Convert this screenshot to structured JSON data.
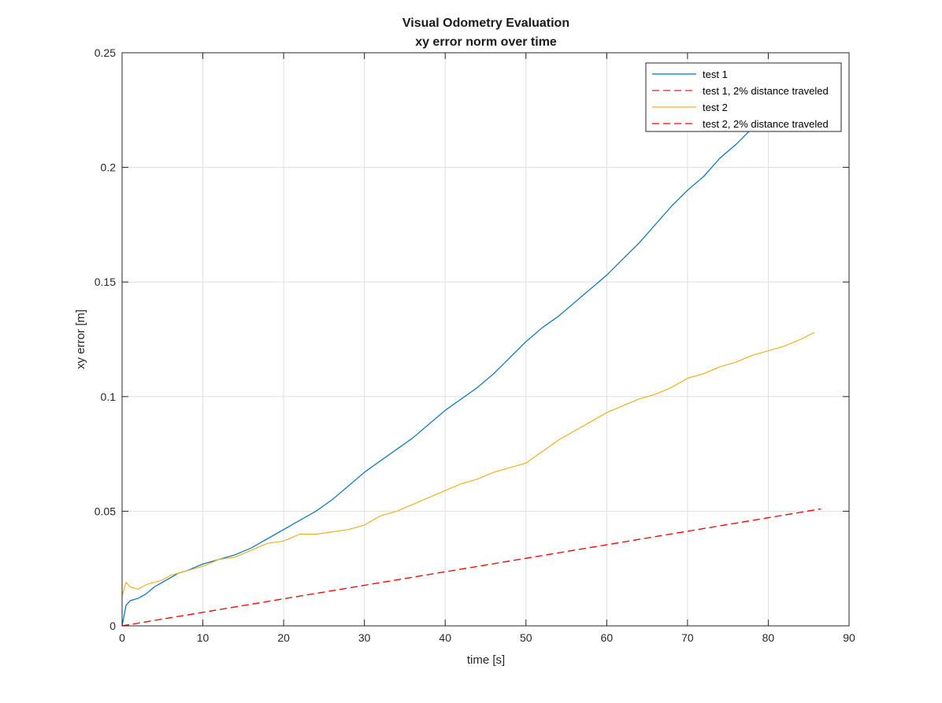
{
  "chart_data": {
    "type": "line",
    "title": "Visual Odometry Evaluation",
    "subtitle": "xy error norm over time",
    "xlabel": "time [s]",
    "ylabel": "xy error [m]",
    "xlim": [
      0,
      90
    ],
    "ylim": [
      0,
      0.25
    ],
    "x_ticks": [
      0,
      10,
      20,
      30,
      40,
      50,
      60,
      70,
      80,
      90
    ],
    "y_ticks": [
      0,
      0.05,
      0.1,
      0.15,
      0.2,
      0.25
    ],
    "x_tick_labels": [
      "0",
      "10",
      "20",
      "30",
      "40",
      "50",
      "60",
      "70",
      "80",
      "90"
    ],
    "y_tick_labels": [
      "0",
      "0.05",
      "0.1",
      "0.15",
      "0.2",
      "0.25"
    ],
    "grid": true,
    "legend_position": "top-right",
    "series": [
      {
        "name": "test 1",
        "color": "#0072BD",
        "style": "solid",
        "x": [
          0,
          0.5,
          1,
          2,
          3,
          4,
          5,
          6,
          7,
          8,
          10,
          12,
          14,
          16,
          18,
          20,
          22,
          24,
          26,
          28,
          30,
          32,
          34,
          36,
          38,
          40,
          42,
          44,
          46,
          48,
          50,
          52,
          54,
          56,
          58,
          60,
          62,
          64,
          66,
          68,
          70,
          72,
          74,
          76,
          78,
          79.3
        ],
        "y": [
          0,
          0.009,
          0.011,
          0.012,
          0.014,
          0.017,
          0.019,
          0.021,
          0.023,
          0.024,
          0.027,
          0.029,
          0.031,
          0.034,
          0.038,
          0.042,
          0.046,
          0.05,
          0.055,
          0.061,
          0.067,
          0.072,
          0.077,
          0.082,
          0.088,
          0.094,
          0.099,
          0.104,
          0.11,
          0.117,
          0.124,
          0.13,
          0.135,
          0.141,
          0.147,
          0.153,
          0.16,
          0.167,
          0.175,
          0.183,
          0.19,
          0.196,
          0.204,
          0.21,
          0.217,
          0.222
        ]
      },
      {
        "name": "test 1, 2% distance traveled",
        "color": "#D62728",
        "style": "dashed",
        "x": [
          0,
          86.5
        ],
        "y": [
          0,
          0.051
        ]
      },
      {
        "name": "test 2",
        "color": "#EDB120",
        "style": "solid",
        "x": [
          0,
          0.5,
          1,
          2,
          3,
          4,
          5,
          6,
          8,
          10,
          12,
          14,
          16,
          18,
          20,
          22,
          24,
          26,
          28,
          30,
          32,
          34,
          36,
          38,
          40,
          42,
          44,
          46,
          48,
          50,
          52,
          54,
          56,
          58,
          60,
          62,
          64,
          66,
          68,
          70,
          72,
          74,
          76,
          78,
          80,
          82,
          84,
          85.7
        ],
        "y": [
          0.013,
          0.019,
          0.017,
          0.016,
          0.018,
          0.019,
          0.02,
          0.022,
          0.024,
          0.026,
          0.029,
          0.03,
          0.033,
          0.036,
          0.037,
          0.04,
          0.04,
          0.041,
          0.042,
          0.044,
          0.048,
          0.05,
          0.053,
          0.056,
          0.059,
          0.062,
          0.064,
          0.067,
          0.069,
          0.071,
          0.076,
          0.081,
          0.085,
          0.089,
          0.093,
          0.096,
          0.099,
          0.101,
          0.104,
          0.108,
          0.11,
          0.113,
          0.115,
          0.118,
          0.12,
          0.122,
          0.125,
          0.128
        ]
      },
      {
        "name": "test 2, 2% distance traveled",
        "color": "#FF0000",
        "style": "dashed",
        "x": [
          0,
          86.5
        ],
        "y": [
          0,
          0.051
        ]
      }
    ]
  }
}
